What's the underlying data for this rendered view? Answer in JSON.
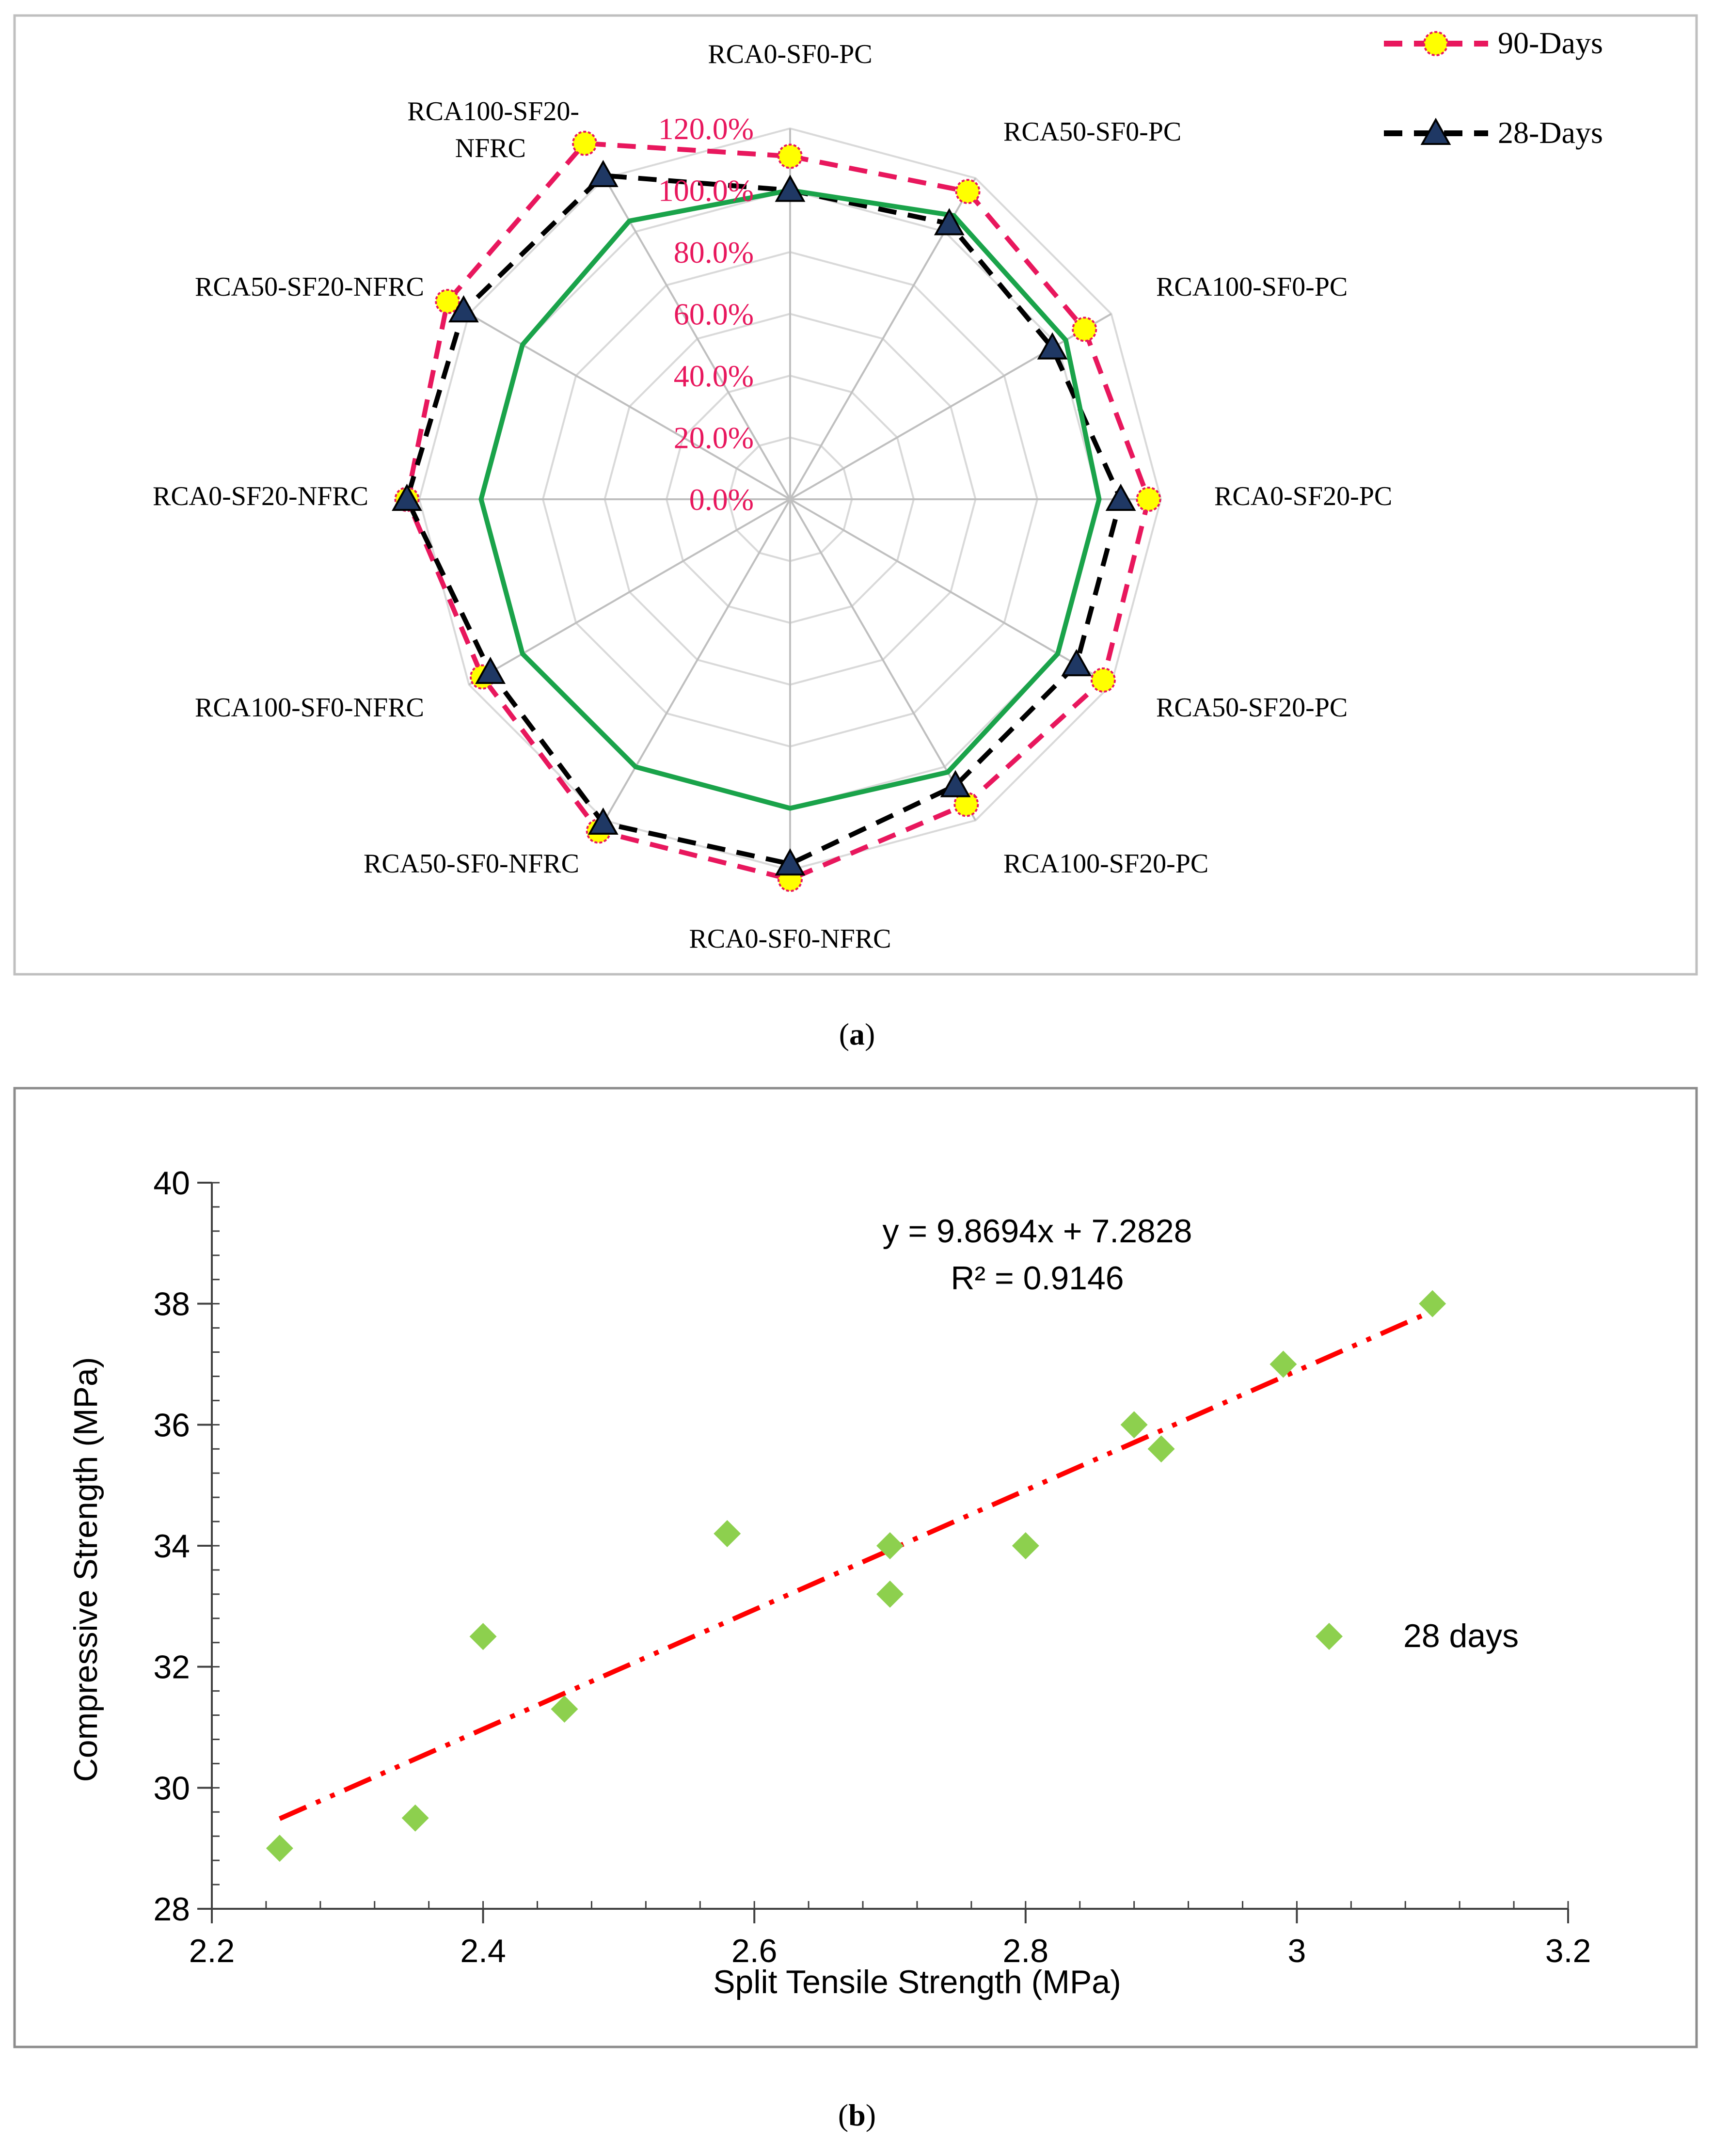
{
  "chart_data": [
    {
      "type": "radar",
      "caption": "(a)",
      "caption_letter": "a",
      "axes": [
        "RCA0-SF0-PC",
        "RCA50-SF0-PC",
        "RCA100-SF0-PC",
        "RCA0-SF20-PC",
        "RCA50-SF20-PC",
        "RCA100-SF20-PC",
        "RCA0-SF0-NFRC",
        "RCA50-SF0-NFRC",
        "RCA100-SF0-NFRC",
        "RCA0-SF20-NFRC",
        "RCA50-SF20-NFRC",
        "RCA100-SF20-NFRC"
      ],
      "axis_label_lines": [
        [
          "RCA0-SF0-PC"
        ],
        [
          "RCA50-SF0-PC"
        ],
        [
          "RCA100-SF0-PC"
        ],
        [
          "RCA0-SF20-PC"
        ],
        [
          "RCA50-SF20-PC"
        ],
        [
          "RCA100-SF20-PC"
        ],
        [
          "RCA0-SF0-NFRC"
        ],
        [
          "RCA50-SF0-NFRC"
        ],
        [
          "RCA100-SF0-NFRC"
        ],
        [
          "RCA0-SF20-NFRC"
        ],
        [
          "RCA50-SF20-NFRC"
        ],
        [
          "RCA100-SF20-",
          "NFRC"
        ]
      ],
      "rlim": [
        0,
        120
      ],
      "ticks": [
        "0.0%",
        "20.0%",
        "40.0%",
        "60.0%",
        "80.0%",
        "100.0%",
        "120.0%"
      ],
      "series": [
        {
          "name": "90-Days",
          "color": "#e8175d",
          "marker": "circle",
          "marker_color": "#ffff00",
          "values": [
            111,
            115,
            110,
            116,
            117,
            114,
            123,
            124,
            115,
            124,
            128,
            133
          ]
        },
        {
          "name": "28-Days",
          "color": "#000000",
          "marker": "triangle",
          "marker_color": "#1f3864",
          "values": [
            100,
            103,
            98,
            107,
            107,
            107,
            118,
            121,
            112,
            124,
            122,
            121
          ]
        },
        {
          "name": "",
          "color": "#1aa34a",
          "marker": "none",
          "values": [
            100,
            106,
            103,
            100,
            100,
            102,
            100,
            100,
            100,
            100,
            100,
            104
          ]
        }
      ]
    },
    {
      "type": "scatter",
      "caption": "(b)",
      "caption_letter": "b",
      "xlabel": "Split Tensile Strength (MPa)",
      "ylabel": "Compressive Strength (MPa)",
      "xlim": [
        2.2,
        3.2
      ],
      "ylim": [
        28,
        40
      ],
      "xticks": [
        "2.2",
        "2.4",
        "2.6",
        "2.8",
        "3",
        "3.2"
      ],
      "yticks": [
        "28",
        "30",
        "32",
        "34",
        "36",
        "38",
        "40"
      ],
      "series": [
        {
          "name": "28 days",
          "color": "#8dd04e",
          "marker": "diamond",
          "x": [
            2.25,
            2.35,
            2.4,
            2.46,
            2.58,
            2.7,
            2.7,
            2.8,
            2.88,
            2.9,
            2.99,
            3.1
          ],
          "y": [
            29.0,
            29.5,
            32.5,
            31.3,
            34.2,
            34.0,
            33.2,
            34.0,
            36.0,
            35.6,
            37.0,
            38.0
          ]
        }
      ],
      "trendline": {
        "type": "linear",
        "slope": 9.8694,
        "intercept": 7.2828,
        "color": "#ff0000",
        "x_range": [
          2.25,
          3.1
        ]
      },
      "equation": "y = 9.8694x + 7.2828",
      "r_squared": "R² = 0.9146"
    }
  ]
}
